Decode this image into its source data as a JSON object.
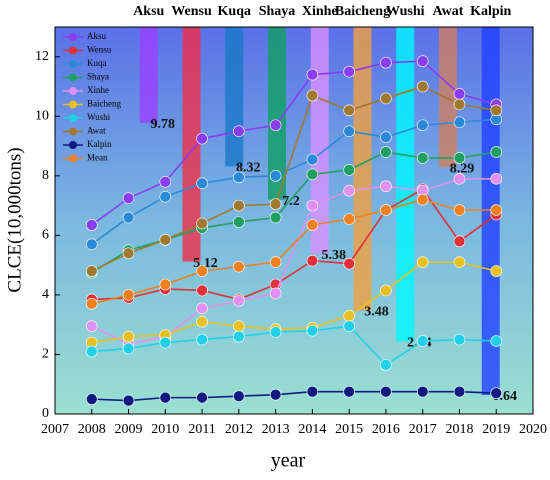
{
  "chart_data": {
    "type": "line",
    "x_label": "year",
    "y_label": "CLCE(10,000tons)",
    "x": [
      2008,
      2009,
      2010,
      2011,
      2012,
      2013,
      2014,
      2015,
      2016,
      2017,
      2018,
      2019
    ],
    "xlim": [
      2007,
      2020
    ],
    "xticks": [
      2007,
      2008,
      2009,
      2010,
      2011,
      2012,
      2013,
      2014,
      2015,
      2016,
      2017,
      2018,
      2019,
      2020
    ],
    "ylim": [
      0,
      13
    ],
    "yticks": [
      0,
      2,
      4,
      6,
      8,
      10,
      12
    ],
    "legend": "upper left",
    "series": [
      {
        "name": "Aksu",
        "color": "#8a3cf0",
        "values": [
          6.35,
          7.25,
          7.8,
          9.25,
          9.5,
          9.7,
          11.4,
          11.5,
          11.8,
          11.85,
          10.75,
          10.4
        ]
      },
      {
        "name": "Wensu",
        "color": "#e0303a",
        "values": [
          3.85,
          3.9,
          4.2,
          4.15,
          3.85,
          4.35,
          5.15,
          5.05,
          6.85,
          7.55,
          5.8,
          6.7
        ]
      },
      {
        "name": "Kuqa",
        "color": "#2a8ad8",
        "values": [
          5.7,
          6.6,
          7.3,
          7.75,
          7.95,
          8.0,
          8.55,
          9.5,
          9.3,
          9.7,
          9.8,
          9.9
        ]
      },
      {
        "name": "Shaya",
        "color": "#1fa060",
        "values": [
          4.75,
          5.5,
          5.85,
          6.25,
          6.45,
          6.6,
          8.05,
          8.2,
          8.8,
          8.6,
          8.6,
          8.8
        ]
      },
      {
        "name": "Xinhe",
        "color": "#e090f0",
        "values": [
          2.95,
          2.35,
          2.6,
          3.55,
          3.8,
          4.05,
          7.0,
          7.5,
          7.65,
          7.5,
          7.9,
          7.9
        ]
      },
      {
        "name": "Baicheng",
        "color": "#e8c020",
        "values": [
          2.4,
          2.6,
          2.65,
          3.1,
          2.95,
          2.85,
          2.9,
          3.3,
          4.15,
          5.1,
          5.1,
          4.8
        ]
      },
      {
        "name": "Wushi",
        "color": "#20d0e8",
        "values": [
          2.1,
          2.2,
          2.4,
          2.5,
          2.6,
          2.75,
          2.8,
          2.95,
          1.65,
          2.45,
          2.5,
          2.45
        ]
      },
      {
        "name": "Awat",
        "color": "#a07830",
        "values": [
          4.8,
          5.4,
          5.85,
          6.4,
          7.0,
          7.05,
          10.7,
          10.2,
          10.6,
          11.0,
          10.4,
          10.2
        ]
      },
      {
        "name": "Kalpin",
        "color": "#101a80",
        "values": [
          0.5,
          0.45,
          0.55,
          0.55,
          0.6,
          0.65,
          0.75,
          0.75,
          0.75,
          0.75,
          0.75,
          0.7
        ]
      },
      {
        "name": "Mean",
        "color": "#f08020",
        "values": [
          3.7,
          4.0,
          4.35,
          4.8,
          4.95,
          5.1,
          6.35,
          6.55,
          6.85,
          7.2,
          6.85,
          6.85
        ]
      }
    ],
    "bars": [
      {
        "name": "Aksu",
        "value": 9.78,
        "color": "#9a40ff"
      },
      {
        "name": "Wensu",
        "value": 5.12,
        "color": "#f03048"
      },
      {
        "name": "Kuqa",
        "value": 8.32,
        "color": "#1a78c8"
      },
      {
        "name": "Shaya",
        "value": 7.2,
        "color": "#10a060"
      },
      {
        "name": "Xinhe",
        "value": 5.38,
        "color": "#d890ff"
      },
      {
        "name": "Baicheng",
        "value": 3.48,
        "color": "#f0a040"
      },
      {
        "name": "Wushi",
        "value": 2.44,
        "color": "#00f8ff"
      },
      {
        "name": "Awat",
        "value": 8.29,
        "color": "#d08060"
      },
      {
        "name": "Kalpin",
        "value": 0.64,
        "color": "#2040ff"
      }
    ]
  }
}
